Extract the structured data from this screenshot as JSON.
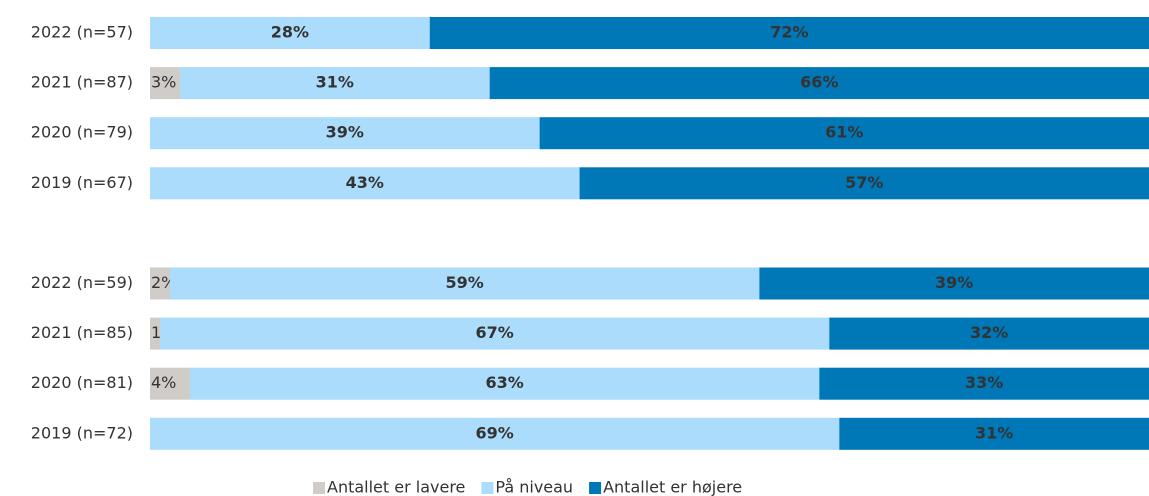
{
  "chart_data": {
    "type": "stacked-bar",
    "orientation": "horizontal",
    "categories": [
      "2022 (n=57)",
      "2021 (n=87)",
      "2020 (n=79)",
      "2019 (n=67)",
      null,
      "2022 (n=59)",
      "2021 (n=85)",
      "2020 (n=81)",
      "2019 (n=72)"
    ],
    "series": [
      {
        "name": "Antallet er lavere",
        "color": "#d0cdc8",
        "values": [
          null,
          3,
          null,
          null,
          null,
          2,
          1,
          4,
          null
        ],
        "value_labels": [
          null,
          "3%",
          null,
          null,
          null,
          "2%",
          "1%",
          "4%",
          null
        ]
      },
      {
        "name": "På niveau",
        "color": "#abdcfb",
        "values": [
          28,
          31,
          39,
          43,
          null,
          59,
          67,
          63,
          69
        ],
        "value_labels": [
          "28%",
          "31%",
          "39%",
          "43%",
          null,
          "59%",
          "67%",
          "63%",
          "69%"
        ]
      },
      {
        "name": "Antallet er højere",
        "color": "#0077b6",
        "values": [
          72,
          66,
          61,
          57,
          null,
          39,
          32,
          33,
          31
        ],
        "value_labels": [
          "72%",
          "66%",
          "61%",
          "57%",
          null,
          "39%",
          "32%",
          "33%",
          "31%"
        ]
      }
    ],
    "xlim": [
      0,
      100
    ],
    "legend": "bottom"
  }
}
